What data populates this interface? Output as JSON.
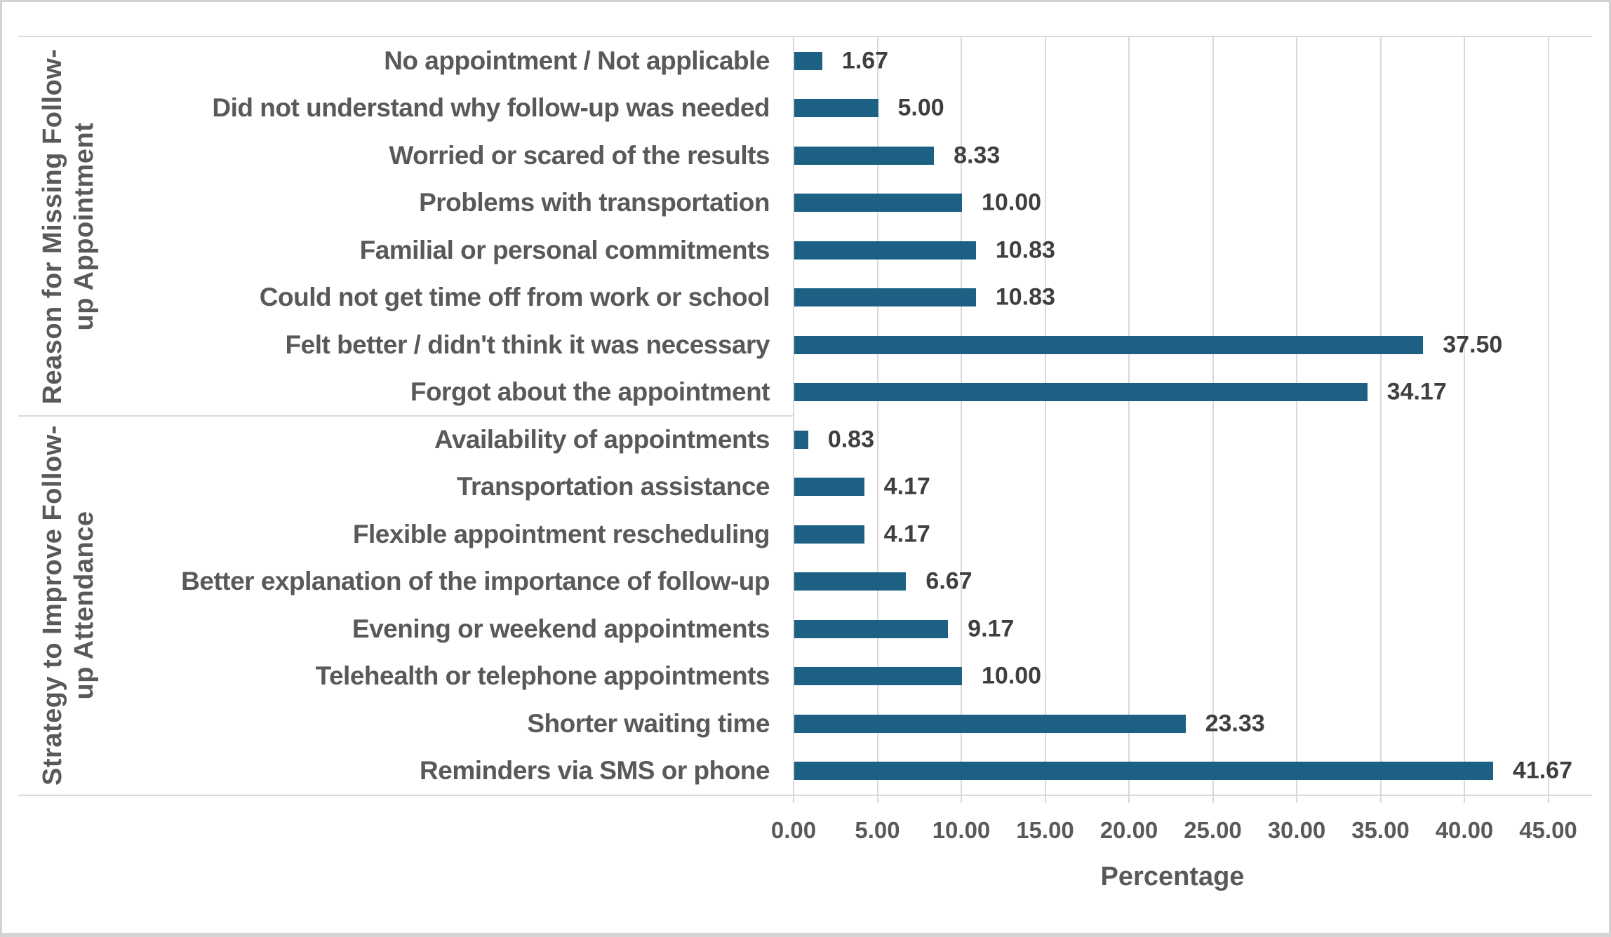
{
  "chart_data": {
    "type": "bar",
    "orientation": "horizontal",
    "title": "",
    "xlabel": "Percentage",
    "ylabel": "",
    "xlim": [
      0,
      45
    ],
    "grid": true,
    "x_tick_labels": [
      "0.00",
      "5.00",
      "10.00",
      "15.00",
      "20.00",
      "25.00",
      "30.00",
      "35.00",
      "40.00",
      "45.00"
    ],
    "x_tick_values": [
      0,
      5,
      10,
      15,
      20,
      25,
      30,
      35,
      40,
      45
    ],
    "groups": [
      {
        "label": "Reason for Missing Follow-up Appointment",
        "label_lines": "Reason for Missing Follow-\nup Appointment",
        "items": [
          {
            "category": "No appointment / Not applicable",
            "value": 1.67,
            "value_label": "1.67"
          },
          {
            "category": "Did not understand why follow-up was needed",
            "value": 5.0,
            "value_label": "5.00"
          },
          {
            "category": "Worried or scared of the results",
            "value": 8.33,
            "value_label": "8.33"
          },
          {
            "category": "Problems with transportation",
            "value": 10.0,
            "value_label": "10.00"
          },
          {
            "category": "Familial or personal commitments",
            "value": 10.83,
            "value_label": "10.83"
          },
          {
            "category": "Could not get time off from work or school",
            "value": 10.83,
            "value_label": "10.83"
          },
          {
            "category": "Felt better / didn't think it was necessary",
            "value": 37.5,
            "value_label": "37.50"
          },
          {
            "category": "Forgot about the appointment",
            "value": 34.17,
            "value_label": "34.17"
          }
        ]
      },
      {
        "label": "Strategy to Improve Follow-up Attendance",
        "label_lines": "Strategy to Improve Follow-\nup Attendance",
        "items": [
          {
            "category": "Availability of appointments",
            "value": 0.83,
            "value_label": "0.83"
          },
          {
            "category": "Transportation assistance",
            "value": 4.17,
            "value_label": "4.17"
          },
          {
            "category": "Flexible appointment rescheduling",
            "value": 4.17,
            "value_label": "4.17"
          },
          {
            "category": "Better explanation of the importance of follow-up",
            "value": 6.67,
            "value_label": "6.67"
          },
          {
            "category": "Evening or weekend appointments",
            "value": 9.17,
            "value_label": "9.17"
          },
          {
            "category": "Telehealth or telephone appointments",
            "value": 10.0,
            "value_label": "10.00"
          },
          {
            "category": "Shorter waiting time",
            "value": 23.33,
            "value_label": "23.33"
          },
          {
            "category": "Reminders via SMS or phone",
            "value": 41.67,
            "value_label": "41.67"
          }
        ]
      }
    ]
  },
  "colors": {
    "bar": "#1c6183",
    "gridline": "#d9d9d9",
    "category_text": "#595959",
    "value_text": "#3f3f3f",
    "background": "#ffffff"
  }
}
